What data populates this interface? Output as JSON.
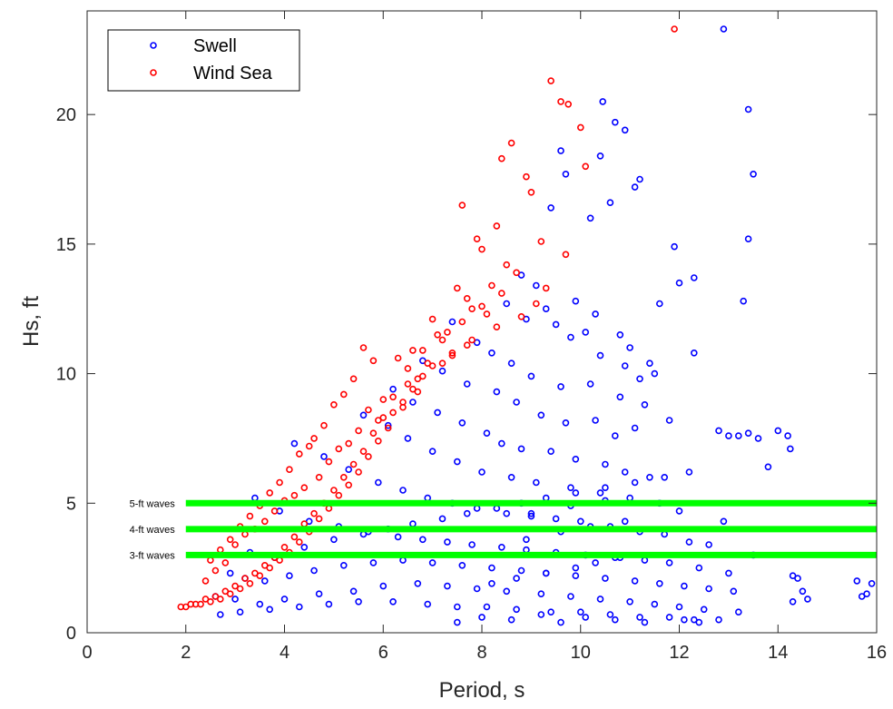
{
  "chart_data": {
    "type": "scatter",
    "xlabel": "Period, s",
    "ylabel": "Hs, ft",
    "xlim": [
      0,
      16
    ],
    "ylim": [
      0,
      24
    ],
    "xticks": [
      0,
      2,
      4,
      6,
      8,
      10,
      12,
      14,
      16
    ],
    "yticks": [
      0,
      5,
      10,
      15,
      20
    ],
    "grid": false,
    "legend_position": "top-left",
    "colors": {
      "Swell": "#0000ff",
      "Wind Sea": "#ff0000",
      "reference": "#00ff00"
    },
    "legend": [
      "Swell",
      "Wind Sea"
    ],
    "series": [
      {
        "name": "Swell",
        "color": "#0000ff",
        "x": [
          12.9,
          13.4,
          13.5,
          13.4,
          13.3,
          10.45,
          10.7,
          10.9,
          10.4,
          9.6,
          9.7,
          9.4,
          11.1,
          11.2,
          10.2,
          10.6,
          11.9,
          12.0,
          12.3,
          12.3,
          11.6,
          10.3,
          10.8,
          11.0,
          11.4,
          11.5,
          11.8,
          12.8,
          13.0,
          13.2,
          13.4,
          13.6,
          13.8,
          14.0,
          14.2,
          14.25,
          14.3,
          14.4,
          14.5,
          15.6,
          15.7,
          15.8,
          15.9,
          14.6,
          14.3,
          13.5,
          12.6,
          12.9,
          12.1,
          12.4,
          8.8,
          9.1,
          9.3,
          9.9,
          10.1,
          8.5,
          8.9,
          9.5,
          9.8,
          10.4,
          10.9,
          11.2,
          7.4,
          7.9,
          8.2,
          8.6,
          9.0,
          9.6,
          10.2,
          10.8,
          11.3,
          6.8,
          7.2,
          7.7,
          8.3,
          8.7,
          9.2,
          9.7,
          10.3,
          10.7,
          11.1,
          6.2,
          6.6,
          7.1,
          7.6,
          8.1,
          8.4,
          8.8,
          9.4,
          9.9,
          10.5,
          10.9,
          11.4,
          5.6,
          6.1,
          6.5,
          7.0,
          7.5,
          8.0,
          8.6,
          9.1,
          9.8,
          10.4,
          11.0,
          11.6,
          12.0,
          4.2,
          4.8,
          5.3,
          5.9,
          6.4,
          6.9,
          7.4,
          7.9,
          8.5,
          9.0,
          9.5,
          10.0,
          10.6,
          11.2,
          11.7,
          12.2,
          3.4,
          3.9,
          4.5,
          5.1,
          5.7,
          6.3,
          6.8,
          7.3,
          7.8,
          8.4,
          8.9,
          9.5,
          10.1,
          10.7,
          11.3,
          11.8,
          12.4,
          13.0,
          2.9,
          3.2,
          3.6,
          4.1,
          4.6,
          5.2,
          5.8,
          6.4,
          7.0,
          7.6,
          8.2,
          8.8,
          9.3,
          9.9,
          10.5,
          11.1,
          11.6,
          12.1,
          12.6,
          13.1,
          2.6,
          3.0,
          3.5,
          4.0,
          4.7,
          5.4,
          6.0,
          6.7,
          7.3,
          7.9,
          8.5,
          9.2,
          9.8,
          10.4,
          11.0,
          11.5,
          12.0,
          12.5,
          13.2,
          2.7,
          3.1,
          3.7,
          4.3,
          4.9,
          5.5,
          6.2,
          6.9,
          7.5,
          8.1,
          8.7,
          9.4,
          10.0,
          10.6,
          11.2,
          11.8,
          12.3,
          12.8,
          3.3,
          3.8,
          4.4,
          5.0,
          5.6,
          6.1,
          6.6,
          7.2,
          7.7,
          8.3,
          8.8,
          9.3,
          9.9,
          10.5,
          11.1,
          11.7,
          12.2,
          7.5,
          8.0,
          8.6,
          9.2,
          9.6,
          10.1,
          10.7,
          11.3,
          8.2,
          8.7,
          9.3,
          9.9,
          10.3,
          10.8,
          8.9,
          9.6,
          10.2,
          10.9,
          9.0,
          9.8,
          10.5
        ],
        "y": [
          23.3,
          20.2,
          17.7,
          15.2,
          12.8,
          20.5,
          19.7,
          19.4,
          18.4,
          18.6,
          17.7,
          16.4,
          17.2,
          17.5,
          16.0,
          16.6,
          14.9,
          13.5,
          13.7,
          10.8,
          12.7,
          12.3,
          11.5,
          11.0,
          10.4,
          10.0,
          8.2,
          7.8,
          7.6,
          7.6,
          7.7,
          7.5,
          6.4,
          7.8,
          7.6,
          7.1,
          2.2,
          2.1,
          1.6,
          2.0,
          1.4,
          1.5,
          1.9,
          1.3,
          1.2,
          3.0,
          3.4,
          4.3,
          0.5,
          0.4,
          13.8,
          13.4,
          12.5,
          12.8,
          11.6,
          12.7,
          12.1,
          11.9,
          11.4,
          10.7,
          10.3,
          9.8,
          12.0,
          11.2,
          10.8,
          10.4,
          9.9,
          9.5,
          9.6,
          9.1,
          8.8,
          10.5,
          10.1,
          9.6,
          9.3,
          8.9,
          8.4,
          8.1,
          8.2,
          7.6,
          7.9,
          9.4,
          8.9,
          8.5,
          8.1,
          7.7,
          7.3,
          7.1,
          7.0,
          6.7,
          6.5,
          6.2,
          6.0,
          8.4,
          8.0,
          7.5,
          7.0,
          6.6,
          6.2,
          6.0,
          5.8,
          5.6,
          5.4,
          5.2,
          5.0,
          4.7,
          7.3,
          6.8,
          6.3,
          5.8,
          5.5,
          5.2,
          5.0,
          4.8,
          4.6,
          4.5,
          4.4,
          4.3,
          4.1,
          3.9,
          3.8,
          3.5,
          5.2,
          4.7,
          4.3,
          4.1,
          3.9,
          3.7,
          3.6,
          3.5,
          3.4,
          3.3,
          3.2,
          3.1,
          3.0,
          2.9,
          2.8,
          2.7,
          2.5,
          2.3,
          2.3,
          2.1,
          2.0,
          2.2,
          2.4,
          2.6,
          2.7,
          2.8,
          2.7,
          2.6,
          2.5,
          2.4,
          2.3,
          2.2,
          2.1,
          2.0,
          1.9,
          1.8,
          1.7,
          1.6,
          1.4,
          1.3,
          1.1,
          1.3,
          1.5,
          1.6,
          1.8,
          1.9,
          1.8,
          1.7,
          1.6,
          1.5,
          1.4,
          1.3,
          1.2,
          1.1,
          1.0,
          0.9,
          0.8,
          0.7,
          0.8,
          0.9,
          1.0,
          1.1,
          1.2,
          1.2,
          1.1,
          1.0,
          1.0,
          0.9,
          0.8,
          0.8,
          0.7,
          0.6,
          0.6,
          0.5,
          0.5,
          3.1,
          2.9,
          3.3,
          3.6,
          3.8,
          4.0,
          4.2,
          4.4,
          4.6,
          4.8,
          5.0,
          5.2,
          5.4,
          5.6,
          5.8,
          6.0,
          6.2,
          0.4,
          0.6,
          0.5,
          0.7,
          0.4,
          0.6,
          0.5,
          0.4,
          1.9,
          2.1,
          2.3,
          2.5,
          2.7,
          2.9,
          3.6,
          3.9,
          4.1,
          4.3,
          4.6,
          4.9,
          5.1
        ]
      },
      {
        "name": "Wind Sea",
        "color": "#ff0000",
        "x": [
          11.9,
          9.4,
          9.6,
          9.75,
          10.0,
          10.1,
          8.6,
          8.4,
          7.6,
          8.3,
          8.9,
          9.0,
          7.9,
          8.0,
          8.5,
          8.7,
          9.2,
          9.7,
          9.3,
          7.5,
          7.7,
          7.8,
          8.1,
          8.2,
          7.2,
          7.4,
          7.0,
          7.3,
          6.8,
          6.9,
          6.5,
          6.7,
          6.6,
          6.2,
          6.4,
          6.0,
          6.1,
          5.8,
          5.9,
          5.6,
          5.7,
          5.4,
          5.5,
          5.2,
          5.3,
          5.0,
          5.1,
          4.8,
          4.9,
          4.6,
          4.7,
          4.4,
          4.5,
          4.2,
          4.3,
          4.0,
          4.1,
          3.8,
          3.9,
          3.6,
          3.7,
          3.4,
          3.5,
          3.2,
          3.3,
          3.0,
          3.1,
          2.8,
          2.9,
          2.6,
          2.7,
          2.4,
          2.5,
          2.2,
          2.3,
          2.0,
          2.1,
          1.9,
          5.6,
          5.8,
          5.4,
          5.2,
          6.3,
          6.6,
          7.1,
          7.6,
          8.0,
          8.4,
          5.0,
          4.8,
          4.6,
          5.7,
          6.0,
          6.5,
          7.0,
          7.4,
          7.8,
          4.3,
          4.5,
          4.1,
          3.9,
          3.7,
          3.5,
          3.3,
          3.1,
          2.9,
          2.7,
          2.5,
          6.8,
          7.2,
          7.7,
          8.3,
          8.8,
          9.1,
          5.5,
          5.9,
          6.2,
          6.4,
          6.7,
          4.9,
          5.1,
          5.3,
          4.4,
          4.7,
          3.6,
          3.8,
          4.0,
          4.2,
          3.0,
          3.2,
          3.4,
          2.4,
          2.6,
          2.8
        ],
        "y": [
          23.3,
          21.3,
          20.5,
          20.4,
          19.5,
          18.0,
          18.9,
          18.3,
          16.5,
          15.7,
          17.6,
          17.0,
          15.2,
          14.8,
          14.2,
          13.9,
          15.1,
          14.6,
          13.3,
          13.3,
          12.9,
          12.5,
          12.3,
          13.4,
          11.3,
          10.8,
          12.1,
          11.6,
          10.9,
          10.4,
          10.2,
          9.8,
          9.4,
          9.1,
          8.7,
          8.3,
          7.9,
          7.7,
          7.4,
          7.0,
          6.8,
          6.5,
          6.2,
          6.0,
          5.7,
          5.5,
          5.3,
          5.0,
          4.8,
          4.6,
          4.4,
          4.2,
          3.9,
          3.7,
          3.5,
          3.3,
          3.1,
          2.9,
          2.8,
          2.6,
          2.5,
          2.3,
          2.2,
          2.1,
          1.9,
          1.8,
          1.7,
          1.6,
          1.5,
          1.4,
          1.3,
          1.3,
          1.2,
          1.1,
          1.1,
          1.0,
          1.1,
          1.0,
          11.0,
          10.5,
          9.8,
          9.2,
          10.6,
          10.9,
          11.5,
          12.0,
          12.6,
          13.1,
          8.8,
          8.0,
          7.5,
          8.6,
          9.0,
          9.6,
          10.3,
          10.7,
          11.3,
          6.9,
          7.2,
          6.3,
          5.8,
          5.4,
          4.9,
          4.5,
          4.1,
          3.6,
          3.2,
          2.8,
          9.9,
          10.4,
          11.1,
          11.8,
          12.2,
          12.7,
          7.8,
          8.2,
          8.5,
          8.9,
          9.3,
          6.6,
          7.1,
          7.3,
          5.6,
          6.0,
          4.3,
          4.7,
          5.1,
          5.3,
          3.4,
          3.8,
          4.0,
          2.0,
          2.4,
          2.7
        ]
      }
    ],
    "reference_lines": [
      {
        "label": "5-ft waves",
        "y": 5,
        "x_start": 2,
        "x_end": 16
      },
      {
        "label": "4-ft waves",
        "y": 4,
        "x_start": 2,
        "x_end": 16
      },
      {
        "label": "3-ft waves",
        "y": 3,
        "x_start": 2,
        "x_end": 16
      }
    ]
  }
}
